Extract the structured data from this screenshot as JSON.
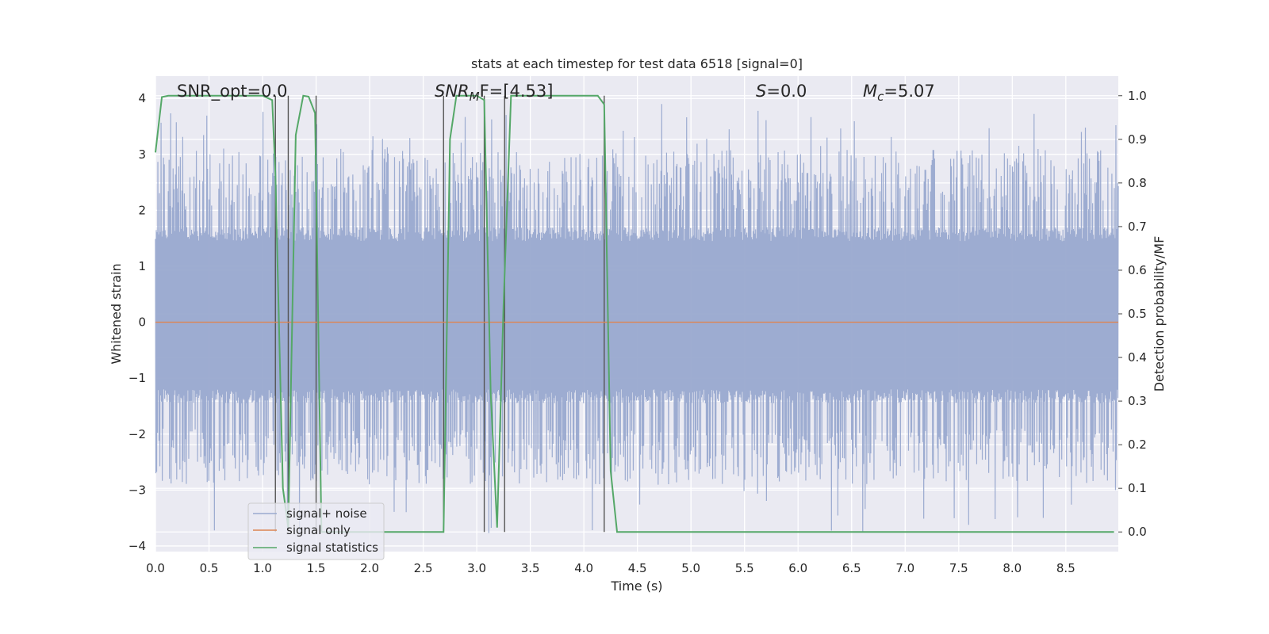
{
  "chart_data": {
    "type": "line",
    "title": "stats at each timestep for test data 6518 [signal=0]",
    "xlabel": "Time (s)",
    "ylabel": "Whitened strain",
    "y2label": "Detection probability/MF",
    "xlim": [
      0,
      8.99
    ],
    "ylim": [
      -4.1,
      4.4
    ],
    "y2lim": [
      -0.045,
      1.045
    ],
    "x_ticks": [
      "0.0",
      "0.5",
      "1.0",
      "1.5",
      "2.0",
      "2.5",
      "3.0",
      "3.5",
      "4.0",
      "4.5",
      "5.0",
      "5.5",
      "6.0",
      "6.5",
      "7.0",
      "7.5",
      "8.0",
      "8.5"
    ],
    "y_ticks": [
      "4",
      "3",
      "2",
      "1",
      "0",
      "−1",
      "−2",
      "−3",
      "−4"
    ],
    "y2_ticks": [
      "1.0",
      "0.9",
      "0.8",
      "0.7",
      "0.6",
      "0.5",
      "0.4",
      "0.3",
      "0.2",
      "0.1",
      "0.0"
    ],
    "grid": true,
    "legend_position": "lower-left",
    "annotations": {
      "snr_opt": "SNR_opt=0.0",
      "snr_mf_base": "SNR",
      "snr_mf_sub": "M",
      "snr_mf_rest": "F=[4.53]",
      "s_var": "S",
      "s_rest": "=0.0",
      "mc_base": "M",
      "mc_sub": "c",
      "mc_rest": "=5.07"
    },
    "series": [
      {
        "name": "signal+ noise",
        "color": "#99a9cf",
        "kind": "noise",
        "t_start": 0.0,
        "t_end": 8.99,
        "band": [
          -1.45,
          1.7
        ],
        "spike_high_typical": [
          2.0,
          3.1
        ],
        "spike_low_typical": [
          -2.9,
          -1.9
        ],
        "max": 3.9,
        "min": -3.8
      },
      {
        "name": "signal only",
        "color": "#dd8452",
        "x": [
          0.0,
          8.99
        ],
        "y": [
          0.0,
          0.0
        ]
      },
      {
        "name": "signal statistics",
        "color": "#55a868",
        "axis": "right",
        "x": [
          0.0,
          0.06,
          0.12,
          0.5,
          1.0,
          1.09,
          1.12,
          1.19,
          1.24,
          1.31,
          1.38,
          1.43,
          1.49,
          1.55,
          2.0,
          2.5,
          2.69,
          2.75,
          2.81,
          3.0,
          3.07,
          3.13,
          3.19,
          3.25,
          3.32,
          3.5,
          4.0,
          4.13,
          4.19,
          4.25,
          4.31,
          5.0,
          6.0,
          7.0,
          8.0,
          8.95
        ],
        "y": [
          0.87,
          0.997,
          1.0,
          1.0,
          1.0,
          0.99,
          0.82,
          0.1,
          0.01,
          0.91,
          1.0,
          0.998,
          0.96,
          0.0,
          0.0,
          0.0,
          0.0,
          0.9,
          1.0,
          1.0,
          0.99,
          0.32,
          0.01,
          0.52,
          1.0,
          1.0,
          1.0,
          1.0,
          0.98,
          0.14,
          0.0,
          0.0,
          0.0,
          0.0,
          0.0,
          0.0
        ]
      }
    ],
    "marker_lines_x": [
      1.12,
      1.24,
      1.5,
      2.69,
      3.07,
      3.26,
      4.19
    ]
  }
}
